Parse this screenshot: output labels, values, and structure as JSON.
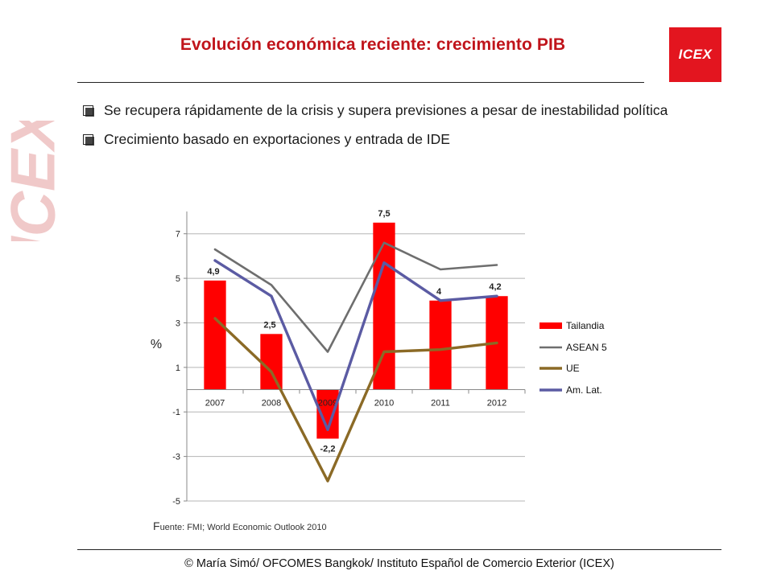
{
  "slide": {
    "title": "Evolución económica reciente: crecimiento PIB",
    "logo_text": "ICEX",
    "watermark_text": "ICEX",
    "bullets": [
      "Se recupera rápidamente de la crisis y supera previsiones a pesar de inestabilidad política",
      "Crecimiento basado en exportaciones y entrada de IDE"
    ],
    "source_initial": "F",
    "source_rest": "uente: FMI; World Economic Outlook 2010",
    "footer": "© María Simó/ OFCOMES Bangkok/ Instituto Español de Comercio Exterior (ICEX)"
  },
  "colors": {
    "title": "#c0141b",
    "logo_bg": "#e3151f",
    "tailandia": "#ff0000",
    "asean5": "#6e6e6e",
    "ue": "#8b6a26",
    "amlat": "#5b5ba3"
  },
  "chart_data": {
    "type": "bar",
    "categories": [
      "2007",
      "2008",
      "2009",
      "2010",
      "2011",
      "2012"
    ],
    "ylabel": "%",
    "ylim": [
      -5,
      8
    ],
    "yticks": [
      -5,
      -3,
      -1,
      1,
      3,
      5,
      7
    ],
    "ytick_labels": [
      "-5",
      "-3",
      "-1",
      "1",
      "3",
      "5",
      "7"
    ],
    "grid": true,
    "legend": "right",
    "series": [
      {
        "name": "Tailandia",
        "kind": "bar",
        "values": [
          4.9,
          2.5,
          -2.2,
          7.5,
          4,
          4.2
        ],
        "labels": [
          "4,9",
          "2,5",
          "-2,2",
          "7,5",
          "4",
          "4,2"
        ]
      },
      {
        "name": "ASEAN 5",
        "kind": "line",
        "values": [
          6.3,
          4.7,
          1.7,
          6.6,
          5.4,
          5.6
        ]
      },
      {
        "name": "UE",
        "kind": "line",
        "values": [
          3.2,
          0.8,
          -4.1,
          1.7,
          1.8,
          2.1
        ]
      },
      {
        "name": "Am. Lat.",
        "kind": "line",
        "values": [
          5.8,
          4.2,
          -1.8,
          5.7,
          4.0,
          4.2
        ]
      }
    ]
  }
}
